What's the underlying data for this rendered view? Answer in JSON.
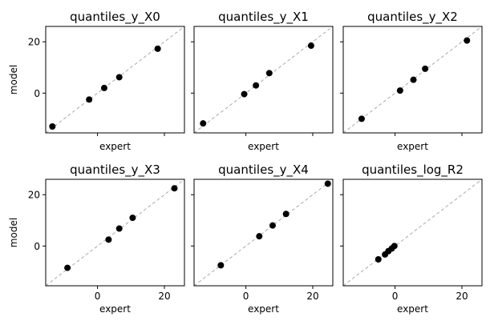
{
  "chart_data": [
    {
      "type": "scatter",
      "title": "quantiles_y_X0",
      "xlabel": "expert",
      "ylabel": "model",
      "xlim": [
        -15.5,
        26
      ],
      "ylim": [
        -15.5,
        26
      ],
      "xticks": [
        0,
        20
      ],
      "yticks": [
        0,
        20
      ],
      "show_xticklabels": false,
      "show_yticklabels": true,
      "reference_line": "y = x",
      "points": [
        {
          "x": -13.5,
          "y": -13.0
        },
        {
          "x": -2.5,
          "y": -2.5
        },
        {
          "x": 2.0,
          "y": 2.0
        },
        {
          "x": 6.5,
          "y": 6.2
        },
        {
          "x": 18.0,
          "y": 17.3
        }
      ]
    },
    {
      "type": "scatter",
      "title": "quantiles_y_X1",
      "xlabel": "expert",
      "ylabel": "",
      "xlim": [
        -15.5,
        26
      ],
      "ylim": [
        -15.5,
        26
      ],
      "xticks": [
        0,
        20
      ],
      "yticks": [
        0,
        20
      ],
      "show_xticklabels": false,
      "show_yticklabels": false,
      "reference_line": "y = x",
      "points": [
        {
          "x": -12.8,
          "y": -11.8
        },
        {
          "x": -0.5,
          "y": -0.4
        },
        {
          "x": 3.0,
          "y": 3.0
        },
        {
          "x": 7.0,
          "y": 7.8
        },
        {
          "x": 19.5,
          "y": 18.5
        }
      ]
    },
    {
      "type": "scatter",
      "title": "quantiles_y_X2",
      "xlabel": "expert",
      "ylabel": "",
      "xlim": [
        -15.5,
        26
      ],
      "ylim": [
        -15.5,
        26
      ],
      "xticks": [
        0,
        20
      ],
      "yticks": [
        0,
        20
      ],
      "show_xticklabels": false,
      "show_yticklabels": false,
      "reference_line": "y = x",
      "points": [
        {
          "x": -10.0,
          "y": -10.0
        },
        {
          "x": 1.5,
          "y": 1.0
        },
        {
          "x": 5.5,
          "y": 5.2
        },
        {
          "x": 9.0,
          "y": 9.5
        },
        {
          "x": 21.5,
          "y": 20.5
        }
      ]
    },
    {
      "type": "scatter",
      "title": "quantiles_y_X3",
      "xlabel": "expert",
      "ylabel": "model",
      "xlim": [
        -15.5,
        26
      ],
      "ylim": [
        -15.5,
        26
      ],
      "xticks": [
        0,
        20
      ],
      "yticks": [
        0,
        20
      ],
      "xtick_labels": [
        "0",
        "20"
      ],
      "ytick_labels": [
        "0",
        "20"
      ],
      "show_xticklabels": true,
      "show_yticklabels": true,
      "reference_line": "y = x",
      "points": [
        {
          "x": -9.0,
          "y": -8.5
        },
        {
          "x": 3.3,
          "y": 2.5
        },
        {
          "x": 6.5,
          "y": 6.8
        },
        {
          "x": 10.5,
          "y": 11.0
        },
        {
          "x": 23.0,
          "y": 22.5
        }
      ]
    },
    {
      "type": "scatter",
      "title": "quantiles_y_X4",
      "xlabel": "expert",
      "ylabel": "",
      "xlim": [
        -15.5,
        26
      ],
      "ylim": [
        -15.5,
        26
      ],
      "xticks": [
        0,
        20
      ],
      "yticks": [
        0,
        20
      ],
      "xtick_labels": [
        "0",
        "20"
      ],
      "show_xticklabels": true,
      "show_yticklabels": false,
      "reference_line": "y = x",
      "points": [
        {
          "x": -7.5,
          "y": -7.5
        },
        {
          "x": 4.0,
          "y": 3.8
        },
        {
          "x": 8.0,
          "y": 8.0
        },
        {
          "x": 12.0,
          "y": 12.5
        },
        {
          "x": 24.5,
          "y": 24.3
        }
      ]
    },
    {
      "type": "scatter",
      "title": "quantiles_log_R2",
      "xlabel": "expert",
      "ylabel": "",
      "xlim": [
        -15.5,
        26
      ],
      "ylim": [
        -15.5,
        26
      ],
      "xticks": [
        0,
        20
      ],
      "yticks": [
        0,
        20
      ],
      "xtick_labels": [
        "0",
        "20"
      ],
      "show_xticklabels": true,
      "show_yticklabels": false,
      "reference_line": "y = x",
      "points": [
        {
          "x": -5.0,
          "y": -5.2
        },
        {
          "x": -3.0,
          "y": -3.3
        },
        {
          "x": -2.0,
          "y": -2.0
        },
        {
          "x": -1.0,
          "y": -1.0
        },
        {
          "x": -0.2,
          "y": 0.0
        }
      ]
    }
  ],
  "yaxis_tick_labels": [
    "0",
    "20"
  ]
}
